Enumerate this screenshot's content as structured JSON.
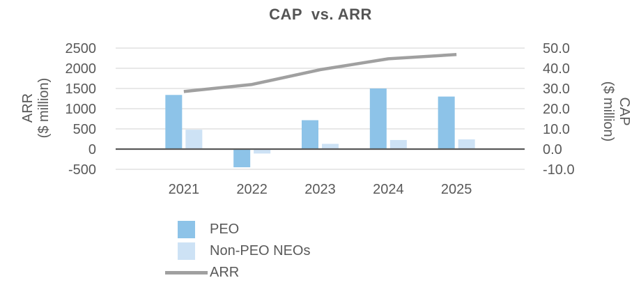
{
  "chart_data": {
    "type": "combo-bar-line",
    "title": "CAP  vs. ARR",
    "categories": [
      "2021",
      "2022",
      "2023",
      "2024",
      "2025"
    ],
    "series": [
      {
        "name": "PEO",
        "type": "bar",
        "axis": "right",
        "color": "#8DC3E8",
        "values": [
          26.8,
          -9.0,
          14.3,
          30.0,
          26.0
        ]
      },
      {
        "name": "Non-PEO NEOs",
        "type": "bar",
        "axis": "right",
        "color": "#CDE2F5",
        "values": [
          9.6,
          -2.2,
          2.6,
          4.5,
          4.8
        ]
      },
      {
        "name": "ARR",
        "type": "line",
        "axis": "left",
        "color": "#A0A0A0",
        "values": [
          1425,
          1600,
          1965,
          2235,
          2340
        ]
      }
    ],
    "left_axis": {
      "label_line1": "ARR",
      "label_line2": "($ million)",
      "tick_values": [
        2500,
        2000,
        1500,
        1000,
        500,
        0,
        -500
      ],
      "tick_labels": [
        "2500",
        "2000",
        "1500",
        "1000",
        "500",
        "0",
        "-500"
      ],
      "range": [
        -500,
        2500
      ]
    },
    "right_axis": {
      "label_line1": "CAP",
      "label_line2": "($ million)",
      "tick_values": [
        50,
        40,
        30,
        20,
        10,
        0,
        -10
      ],
      "tick_labels": [
        "50.0",
        "40.0",
        "30.0",
        "20.0",
        "10.0",
        "0.0",
        "-10.0"
      ],
      "range": [
        -10,
        50
      ]
    },
    "grid": true,
    "legend_position": "bottom-left",
    "colors": {
      "gridline": "#D9D9D9",
      "zero_axis": "#595959",
      "text": "#595959",
      "title": "#555555"
    }
  },
  "legend": {
    "items": [
      {
        "label": "PEO"
      },
      {
        "label": "Non-PEO NEOs"
      },
      {
        "label": "ARR"
      }
    ]
  }
}
